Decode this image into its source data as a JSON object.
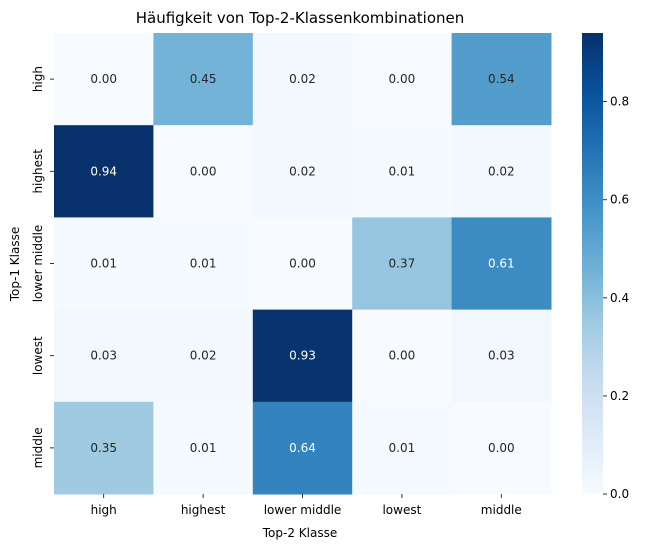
{
  "chart_data": {
    "type": "heatmap",
    "title": "Häufigkeit von Top-2-Klassenkombinationen",
    "xlabel": "Top-2 Klasse",
    "ylabel": "Top-1 Klasse",
    "x_categories": [
      "high",
      "highest",
      "lower middle",
      "lowest",
      "middle"
    ],
    "y_categories": [
      "high",
      "highest",
      "lower middle",
      "lowest",
      "middle"
    ],
    "values": [
      [
        0.0,
        0.45,
        0.02,
        0.0,
        0.54
      ],
      [
        0.94,
        0.0,
        0.02,
        0.01,
        0.02
      ],
      [
        0.01,
        0.01,
        0.0,
        0.37,
        0.61
      ],
      [
        0.03,
        0.02,
        0.93,
        0.0,
        0.03
      ],
      [
        0.35,
        0.01,
        0.64,
        0.01,
        0.0
      ]
    ],
    "value_format": "0.00",
    "colormap": "Blues",
    "colorbar": {
      "range": [
        0.0,
        0.94
      ],
      "ticks": [
        0.0,
        0.2,
        0.4,
        0.6,
        0.8
      ],
      "tick_labels": [
        "0.0",
        "0.2",
        "0.4",
        "0.6",
        "0.8"
      ]
    },
    "grid": false,
    "legend": "colorbar-right"
  }
}
